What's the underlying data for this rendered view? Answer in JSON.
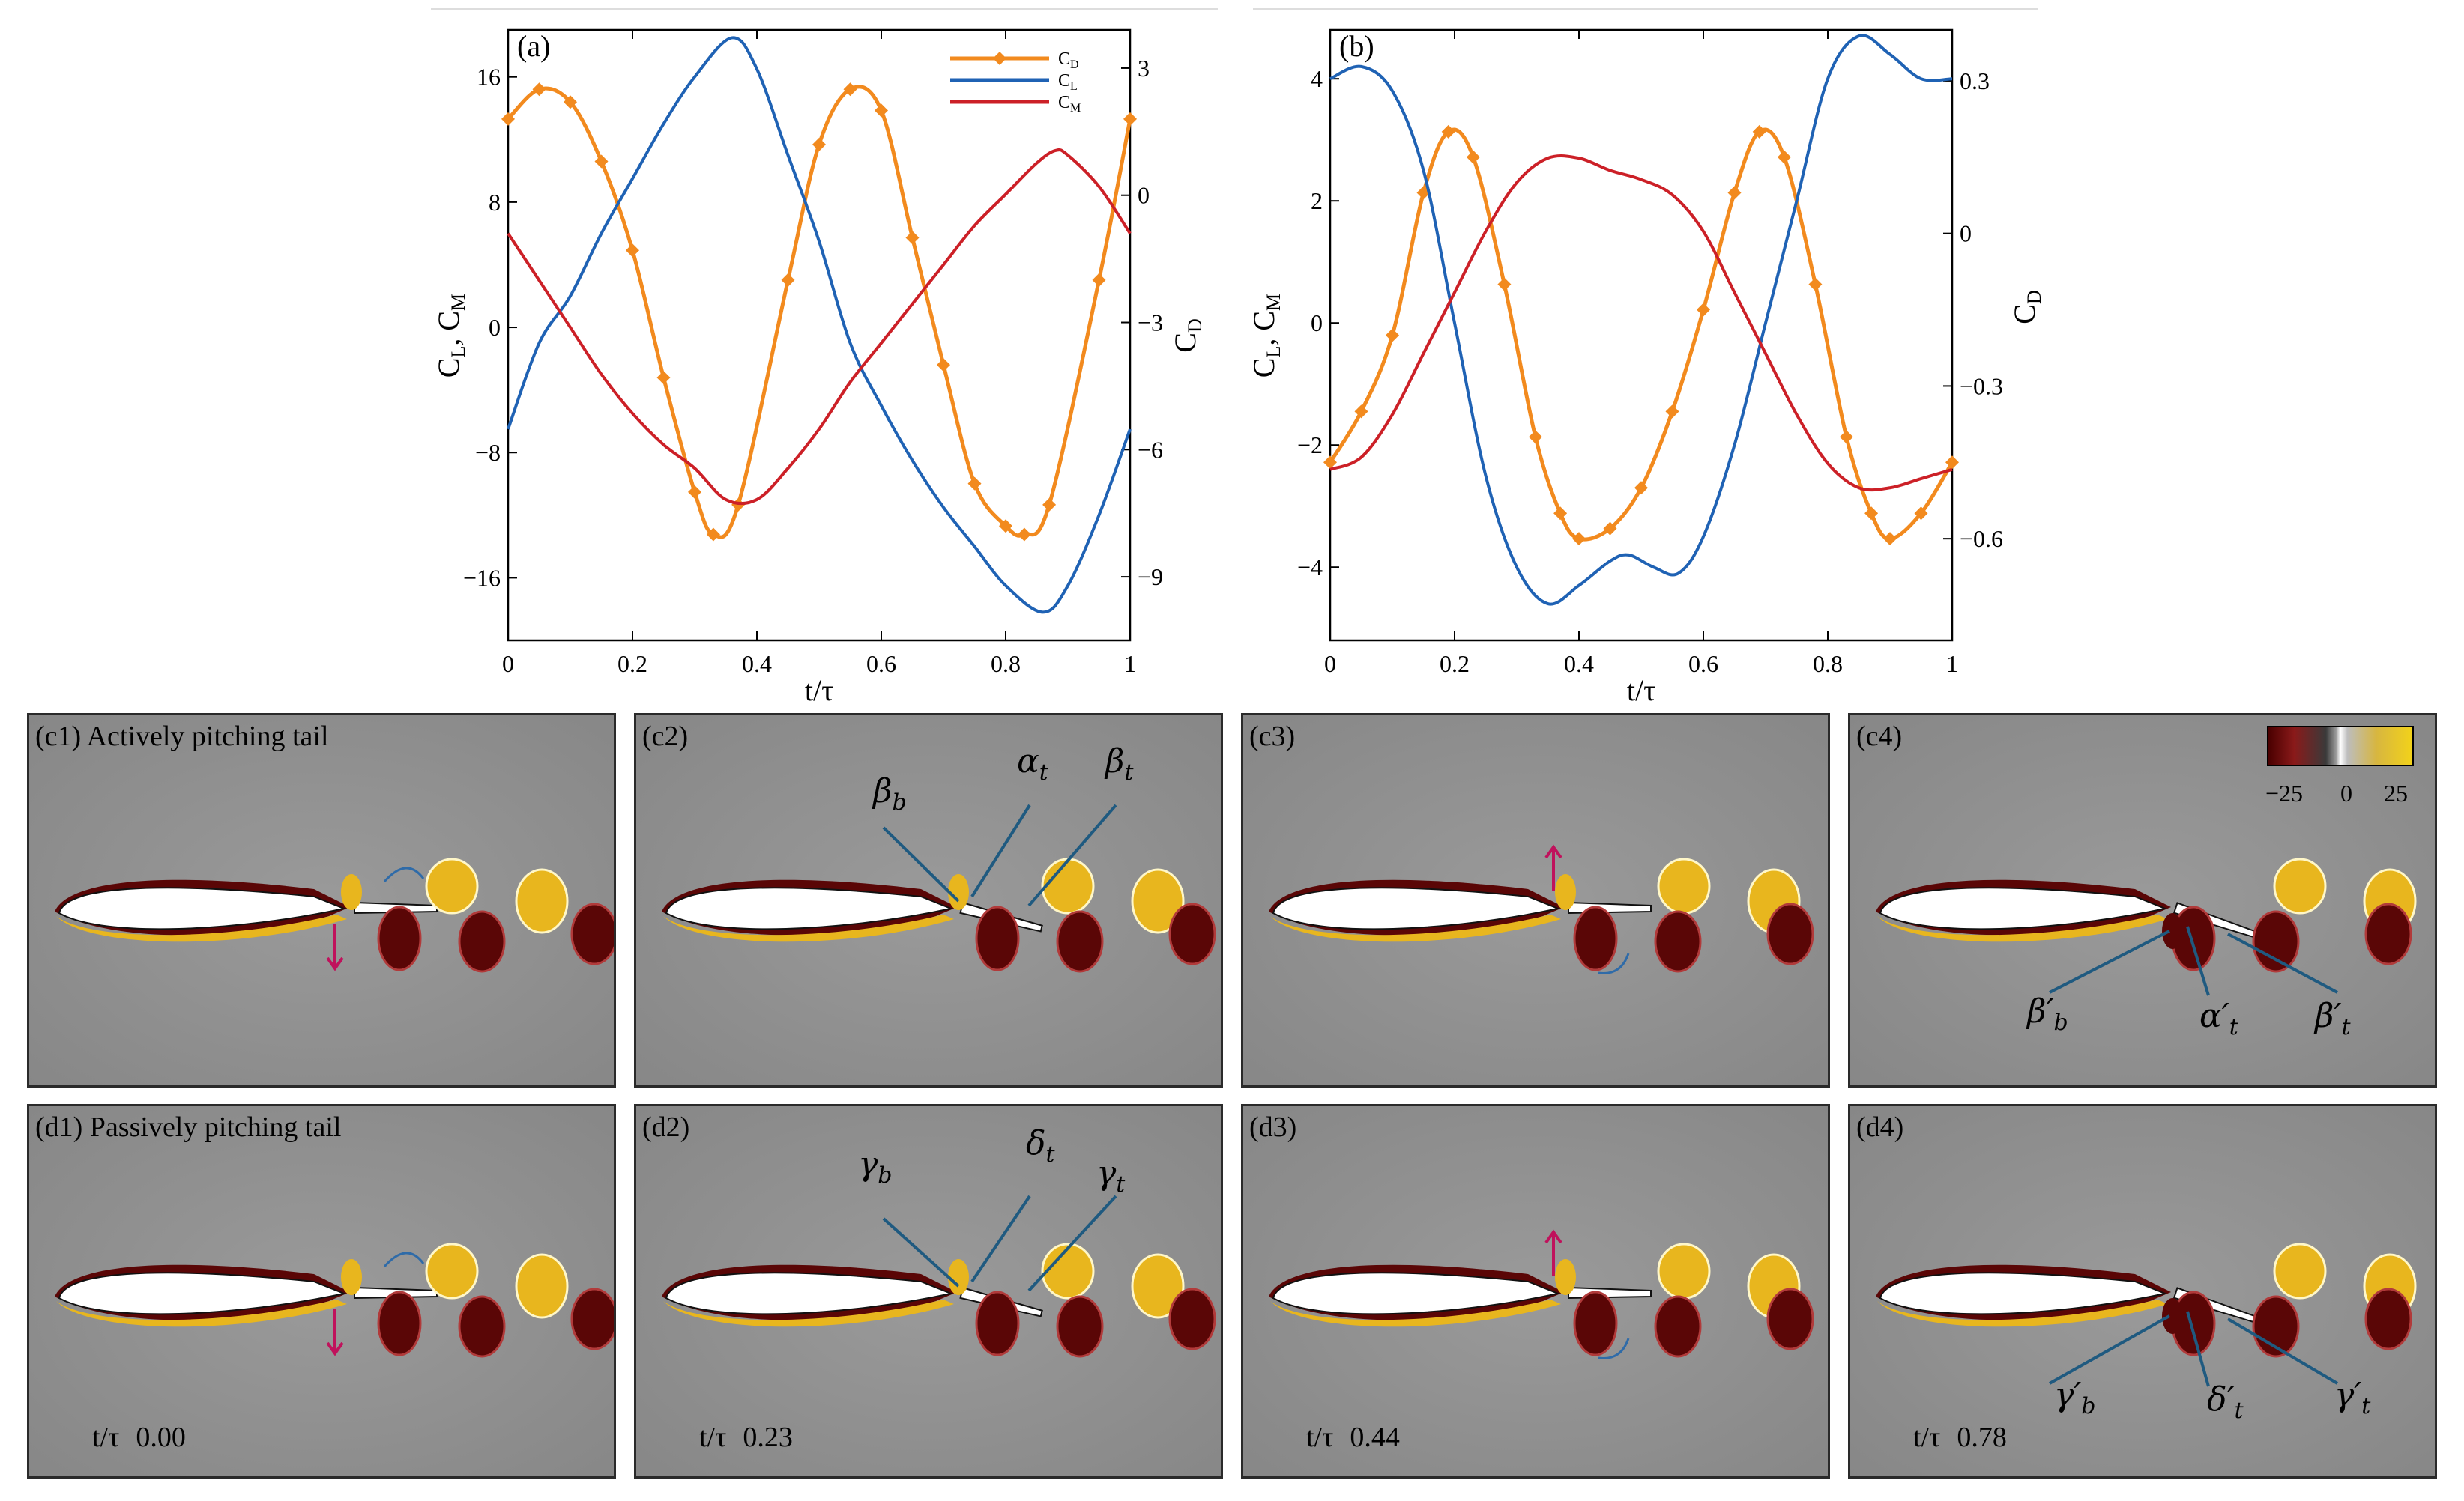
{
  "charts": {
    "a": {
      "label": "(a)",
      "xlabel": "t/τ",
      "ylabel_left": "C_L, C_M",
      "ylabel_right": "C_D",
      "xticks": [
        "0",
        "0.2",
        "0.4",
        "0.6",
        "0.8",
        "1"
      ],
      "yticks_left": [
        "16",
        "8",
        "0",
        "−8",
        "−16"
      ],
      "yticks_right": [
        "3",
        "0",
        "−3",
        "−6",
        "−9"
      ],
      "legend": [
        "C_D",
        "C_L",
        "C_M"
      ]
    },
    "b": {
      "label": "(b)",
      "xlabel": "t/τ",
      "ylabel_left": "C_L, C_M",
      "ylabel_right": "C_D",
      "xticks": [
        "0",
        "0.2",
        "0.4",
        "0.6",
        "0.8",
        "1"
      ],
      "yticks_left": [
        "4",
        "2",
        "0",
        "−2",
        "−4"
      ],
      "yticks_right": [
        "0.3",
        "0",
        "−0.3",
        "−0.6"
      ]
    }
  },
  "chart_data": [
    {
      "type": "line",
      "panel": "(a)",
      "xlabel": "t/τ",
      "ylabel": "C_L, C_M",
      "ylabel_right": "C_D",
      "xlim": [
        0,
        1
      ],
      "ylim": [
        -20,
        19
      ],
      "ylim_right": [
        -10.5,
        3.9
      ],
      "legend_position": "top-right",
      "colors": {
        "C_D": "#f28a1e",
        "C_L": "#1f62b4",
        "C_M": "#cc2027"
      },
      "series": [
        {
          "name": "C_D",
          "axis": "right",
          "marker": "diamond",
          "x": [
            0,
            0.05,
            0.1,
            0.15,
            0.2,
            0.25,
            0.3,
            0.33,
            0.37,
            0.45,
            0.5,
            0.55,
            0.6,
            0.65,
            0.7,
            0.75,
            0.8,
            0.83,
            0.87,
            0.95,
            1
          ],
          "y": [
            1.8,
            2.5,
            2.2,
            0.8,
            -1.3,
            -4.3,
            -7.0,
            -8.0,
            -7.3,
            -2.0,
            1.2,
            2.5,
            2.0,
            -1.0,
            -4.0,
            -6.8,
            -7.8,
            -8.0,
            -7.3,
            -2.0,
            1.8
          ]
        },
        {
          "name": "C_L",
          "axis": "left",
          "x": [
            0,
            0.05,
            0.1,
            0.15,
            0.2,
            0.25,
            0.3,
            0.36,
            0.4,
            0.45,
            0.5,
            0.55,
            0.6,
            0.65,
            0.7,
            0.75,
            0.8,
            0.86,
            0.9,
            0.95,
            1
          ],
          "y": [
            -6.5,
            -1,
            2,
            6,
            9.5,
            13,
            16,
            18.5,
            16.5,
            11,
            5.5,
            -1,
            -5,
            -8.5,
            -11.5,
            -14,
            -16.5,
            -18.2,
            -16.5,
            -12,
            -6.5
          ]
        },
        {
          "name": "C_M",
          "axis": "left",
          "x": [
            0,
            0.05,
            0.1,
            0.15,
            0.2,
            0.25,
            0.3,
            0.35,
            0.4,
            0.45,
            0.5,
            0.55,
            0.6,
            0.65,
            0.7,
            0.75,
            0.8,
            0.85,
            0.88,
            0.9,
            0.95,
            1
          ],
          "y": [
            6,
            3,
            0,
            -3,
            -5.5,
            -7.5,
            -9,
            -11,
            -11,
            -9,
            -6.5,
            -3.5,
            -1,
            1.5,
            4,
            6.5,
            8.5,
            10.5,
            11.3,
            11,
            9,
            6
          ]
        }
      ]
    },
    {
      "type": "line",
      "panel": "(b)",
      "xlabel": "t/τ",
      "ylabel": "C_L, C_M",
      "ylabel_right": "C_D",
      "xlim": [
        0,
        1
      ],
      "ylim": [
        -5.2,
        4.8
      ],
      "ylim_right": [
        -0.8,
        0.4
      ],
      "colors": {
        "C_D": "#f28a1e",
        "C_L": "#1f62b4",
        "C_M": "#cc2027"
      },
      "series": [
        {
          "name": "C_D",
          "axis": "right",
          "marker": "diamond",
          "x": [
            0,
            0.05,
            0.1,
            0.15,
            0.19,
            0.23,
            0.28,
            0.33,
            0.37,
            0.4,
            0.45,
            0.5,
            0.55,
            0.6,
            0.65,
            0.69,
            0.73,
            0.78,
            0.83,
            0.87,
            0.9,
            0.95,
            1
          ],
          "y": [
            -0.45,
            -0.35,
            -0.2,
            0.08,
            0.2,
            0.15,
            -0.1,
            -0.4,
            -0.55,
            -0.6,
            -0.58,
            -0.5,
            -0.35,
            -0.15,
            0.08,
            0.2,
            0.15,
            -0.1,
            -0.4,
            -0.55,
            -0.6,
            -0.55,
            -0.45
          ]
        },
        {
          "name": "C_L",
          "axis": "left",
          "x": [
            0,
            0.05,
            0.1,
            0.15,
            0.2,
            0.25,
            0.3,
            0.35,
            0.4,
            0.45,
            0.48,
            0.52,
            0.56,
            0.6,
            0.65,
            0.7,
            0.75,
            0.8,
            0.85,
            0.9,
            0.95,
            1
          ],
          "y": [
            4.0,
            4.2,
            3.8,
            2.5,
            0,
            -2.5,
            -4,
            -4.6,
            -4.3,
            -3.9,
            -3.8,
            -4.0,
            -4.1,
            -3.5,
            -2,
            0,
            2,
            4,
            4.7,
            4.4,
            4.0,
            4.0
          ]
        },
        {
          "name": "C_M",
          "axis": "left",
          "x": [
            0,
            0.05,
            0.1,
            0.15,
            0.2,
            0.25,
            0.3,
            0.35,
            0.4,
            0.45,
            0.5,
            0.55,
            0.6,
            0.65,
            0.7,
            0.75,
            0.8,
            0.85,
            0.9,
            0.95,
            1
          ],
          "y": [
            -2.4,
            -2.2,
            -1.5,
            -0.5,
            0.5,
            1.5,
            2.3,
            2.7,
            2.7,
            2.5,
            2.35,
            2.1,
            1.5,
            0.5,
            -0.5,
            -1.5,
            -2.3,
            -2.7,
            -2.7,
            -2.55,
            -2.4
          ]
        }
      ]
    }
  ],
  "panels": [
    {
      "label": "(c1) Actively pitching tail",
      "mode": "active",
      "tail": "flat",
      "arrow_up": false,
      "annotations": []
    },
    {
      "label": "(c2)",
      "mode": "active",
      "tail": "down",
      "annotations": [
        "β_b",
        "α_t",
        "β_t"
      ]
    },
    {
      "label": "(c3)",
      "mode": "active",
      "tail": "flat",
      "arrow_up": true,
      "annotations": []
    },
    {
      "label": "(c4)",
      "mode": "active",
      "tail": "up",
      "annotations": [
        "β′_b",
        "α′_t",
        "β′_t"
      ],
      "colorbar": {
        "ticks": [
          "−25",
          "0",
          "25"
        ]
      }
    },
    {
      "label": "(d1) Passively pitching tail",
      "mode": "passive",
      "tail": "flat",
      "arrow_up": false,
      "annotations": [],
      "time_prefix": "t/τ",
      "time": "0.00"
    },
    {
      "label": "(d2)",
      "mode": "passive",
      "tail": "down",
      "annotations": [
        "γ_b",
        "δ_t",
        "γ_t"
      ],
      "time_prefix": "t/τ",
      "time": "0.23"
    },
    {
      "label": "(d3)",
      "mode": "passive",
      "tail": "flat",
      "arrow_up": true,
      "annotations": [],
      "time_prefix": "t/τ",
      "time": "0.44"
    },
    {
      "label": "(d4)",
      "mode": "passive",
      "tail": "up",
      "annotations": [
        "γ′_b",
        "δ′_t",
        "γ′_t"
      ],
      "time_prefix": "t/τ",
      "time": "0.78"
    }
  ],
  "colors": {
    "background": "#8d8d8d",
    "vorticity_negative": "#5a0606",
    "vorticity_positive": "#e8b61e",
    "arrow_magenta": "#c0125c",
    "arrow_blue": "#2f6ba8",
    "leader_line": "#1f5a80"
  }
}
